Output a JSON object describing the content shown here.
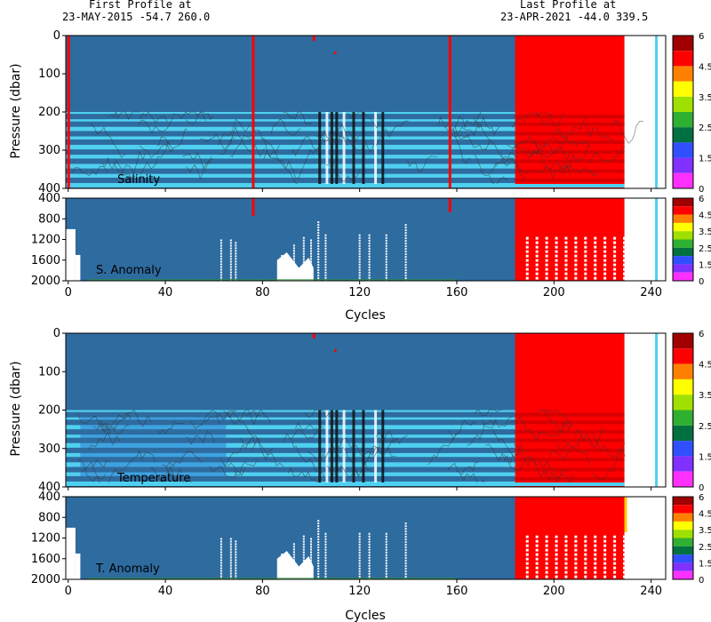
{
  "header": {
    "first_label": "First Profile at",
    "first_value": "23-MAY-2015   -54.7 260.0",
    "last_label": "Last Profile at",
    "last_value": "23-APR-2021   -44.0 339.5"
  },
  "colors": {
    "background_blue": "#2e6b9f",
    "qc_red": "#ff0000",
    "light_cyan": "#4fd0f0",
    "pale_cyan": "#a9e8f7",
    "mid_blue": "#3a96dc",
    "contour_line": "#333333"
  },
  "chart_data": [
    {
      "type": "heatmap",
      "panel": "salinity",
      "title": "",
      "xlabel": "",
      "ylabel": "Pressure (dbar)",
      "label": "Salinity",
      "xlim": [
        -1,
        246
      ],
      "ylim": [
        400,
        0
      ],
      "x_ticks": [
        0,
        80,
        160,
        240
      ],
      "y_ticks": [
        0,
        100,
        200,
        300,
        400
      ],
      "y_tick_labels": [
        "0",
        "100",
        "200",
        "300",
        "400"
      ],
      "data_end_cycle": 229,
      "red_region_start_cycle": 184,
      "qc_red_columns": [
        0,
        76,
        101,
        157
      ],
      "qc_stripes_pressure": [
        200,
        230,
        260,
        280,
        310,
        340,
        370,
        390
      ],
      "colorbar": {
        "labels": [
          "6",
          "4.5",
          "3.5",
          "2.5",
          "1.5",
          "0"
        ],
        "colors": [
          "#a00000",
          "#ff0000",
          "#ff8000",
          "#ffff00",
          "#a0e000",
          "#30b030",
          "#007040",
          "#3050ff",
          "#8030ff",
          "#ff30ff"
        ]
      }
    },
    {
      "type": "heatmap",
      "panel": "salinity-anomaly",
      "label": "S. Anomaly",
      "xlabel": "Cycles",
      "xlim": [
        -1,
        246
      ],
      "ylim": [
        2000,
        400
      ],
      "x_ticks": [
        0,
        40,
        80,
        120,
        160,
        200,
        240
      ],
      "x_tick_labels": [
        "0",
        "40",
        "80",
        "120",
        "160",
        "200",
        "240"
      ],
      "y_ticks": [
        400,
        800,
        1200,
        1600,
        2000
      ],
      "y_tick_labels": [
        "400",
        "800",
        "1200",
        "1600",
        "2000"
      ],
      "profile_bottom_pressure": [
        [
          0,
          1000
        ],
        [
          3,
          1500
        ],
        [
          5,
          2000
        ],
        [
          63,
          1200
        ],
        [
          67,
          1200
        ],
        [
          69,
          1250
        ],
        [
          76,
          2000
        ],
        [
          88,
          1500
        ],
        [
          93,
          1300
        ],
        [
          97,
          1150
        ],
        [
          100,
          1200
        ],
        [
          103,
          850
        ],
        [
          106,
          1100
        ],
        [
          120,
          1100
        ],
        [
          124,
          1100
        ],
        [
          131,
          1100
        ],
        [
          139,
          900
        ]
      ],
      "dotted_columns_red_region": [
        189,
        193,
        197,
        201,
        205,
        209,
        213,
        217,
        221,
        225,
        229
      ],
      "colorbar": {
        "labels": [
          "6",
          "4.5",
          "3.5",
          "2.5",
          "1.5",
          "0"
        ],
        "colors": [
          "#a00000",
          "#ff0000",
          "#ff8000",
          "#ffff00",
          "#a0e000",
          "#30b030",
          "#007040",
          "#3050ff",
          "#8030ff",
          "#ff30ff"
        ]
      }
    },
    {
      "type": "heatmap",
      "panel": "temperature",
      "ylabel": "Pressure (dbar)",
      "label": "Temperature",
      "xlim": [
        -1,
        246
      ],
      "ylim": [
        400,
        0
      ],
      "x_ticks": [
        0,
        80,
        160,
        240
      ],
      "y_ticks": [
        0,
        100,
        200,
        300,
        400
      ],
      "y_tick_labels": [
        "0",
        "100",
        "200",
        "300",
        "400"
      ],
      "data_end_cycle": 229,
      "red_region_start_cycle": 184,
      "qc_stripes_pressure": [
        200,
        230,
        260,
        280,
        310,
        340,
        370,
        390
      ],
      "colorbar": {
        "labels": [
          "6",
          "4.5",
          "3.5",
          "2.5",
          "1.5",
          "0"
        ],
        "colors": [
          "#a00000",
          "#ff0000",
          "#ff8000",
          "#ffff00",
          "#a0e000",
          "#30b030",
          "#007040",
          "#3050ff",
          "#8030ff",
          "#ff30ff"
        ]
      }
    },
    {
      "type": "heatmap",
      "panel": "temperature-anomaly",
      "label": "T. Anomaly",
      "xlabel": "Cycles",
      "xlim": [
        -1,
        246
      ],
      "ylim": [
        2000,
        400
      ],
      "x_ticks": [
        0,
        40,
        80,
        120,
        160,
        200,
        240
      ],
      "x_tick_labels": [
        "0",
        "40",
        "80",
        "120",
        "160",
        "200",
        "240"
      ],
      "y_ticks": [
        400,
        800,
        1200,
        1600,
        2000
      ],
      "y_tick_labels": [
        "400",
        "800",
        "1200",
        "1600",
        "2000"
      ],
      "profile_bottom_pressure": [
        [
          0,
          1000
        ],
        [
          3,
          1500
        ],
        [
          5,
          2000
        ],
        [
          63,
          1200
        ],
        [
          67,
          1200
        ],
        [
          69,
          1250
        ],
        [
          88,
          1500
        ],
        [
          93,
          1300
        ],
        [
          97,
          1150
        ],
        [
          100,
          1200
        ],
        [
          103,
          850
        ],
        [
          106,
          1100
        ],
        [
          120,
          1100
        ],
        [
          124,
          1100
        ],
        [
          131,
          1100
        ],
        [
          139,
          900
        ]
      ],
      "dotted_columns_red_region": [
        189,
        193,
        197,
        201,
        205,
        209,
        213,
        217,
        221,
        225,
        229
      ],
      "colorbar": {
        "labels": [
          "6",
          "4.5",
          "3.5",
          "2.5",
          "1.5",
          "0"
        ],
        "colors": [
          "#a00000",
          "#ff0000",
          "#ff8000",
          "#ffff00",
          "#a0e000",
          "#30b030",
          "#007040",
          "#3050ff",
          "#8030ff",
          "#ff30ff"
        ]
      }
    }
  ]
}
